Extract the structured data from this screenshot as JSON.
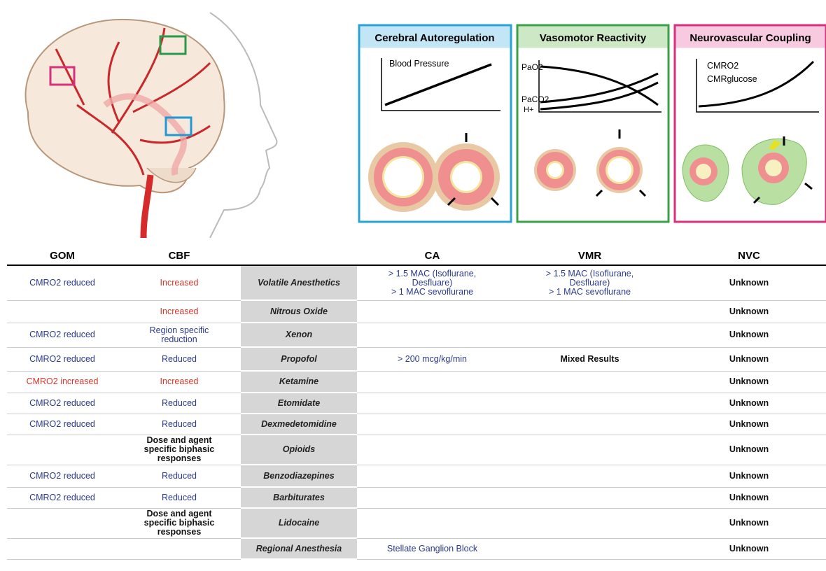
{
  "panels": [
    {
      "title": "Cerebral Autoregulation",
      "labels": [
        "Blood Pressure"
      ]
    },
    {
      "title": "Vasomotor Reactivity",
      "labels": [
        "PaO2",
        "PaCO2",
        "H+"
      ]
    },
    {
      "title": "Neurovascular Coupling",
      "labels": [
        "CMRO2",
        "CMRglucose"
      ]
    }
  ],
  "table": {
    "headers": [
      "GOM",
      "CBF",
      "CA",
      "VMR",
      "NVC"
    ],
    "rows": [
      {
        "agent": "Volatile Anesthetics",
        "gom": {
          "text": "CMRO2 reduced",
          "color": "#2b3a8c"
        },
        "cbf": {
          "text": "Increased",
          "color": "#d9372a"
        },
        "ca": {
          "text": [
            "> 1.5 MAC (Isoflurane, Desfluare)",
            "> 1 MAC sevoflurane"
          ],
          "color": "#2b3a8c"
        },
        "vmr": {
          "text": [
            "> 1.5 MAC (Isoflurane, Desfluare)",
            "> 1 MAC sevoflurane"
          ],
          "color": "#2b3a8c"
        },
        "nvc": {
          "text": "Unknown",
          "color": "#111"
        }
      },
      {
        "agent": "Nitrous Oxide",
        "cbf": {
          "text": "Increased",
          "color": "#d9372a"
        },
        "nvc": {
          "text": "Unknown",
          "color": "#111"
        }
      },
      {
        "agent": "Xenon",
        "gom": {
          "text": "CMRO2 reduced",
          "color": "#2b3a8c"
        },
        "cbf": {
          "text": "Region specific reduction",
          "color": "#2b3a8c"
        },
        "nvc": {
          "text": "Unknown",
          "color": "#111"
        }
      },
      {
        "agent": "Propofol",
        "gom": {
          "text": "CMRO2 reduced",
          "color": "#2b3a8c"
        },
        "cbf": {
          "text": "Reduced",
          "color": "#2b3a8c"
        },
        "ca": {
          "text": "> 200 mcg/kg/min",
          "color": "#2b3a8c"
        },
        "vmr": {
          "text": "Mixed Results",
          "color": "#111"
        },
        "nvc": {
          "text": "Unknown",
          "color": "#111"
        }
      },
      {
        "agent": "Ketamine",
        "gom": {
          "text": "CMRO2 increased",
          "color": "#d9372a"
        },
        "cbf": {
          "text": "Increased",
          "color": "#d9372a"
        },
        "nvc": {
          "text": "Unknown",
          "color": "#111"
        }
      },
      {
        "agent": "Etomidate",
        "gom": {
          "text": "CMRO2 reduced",
          "color": "#2b3a8c"
        },
        "cbf": {
          "text": "Reduced",
          "color": "#2b3a8c"
        },
        "nvc": {
          "text": "Unknown",
          "color": "#111"
        }
      },
      {
        "agent": "Dexmedetomidine",
        "gom": {
          "text": "CMRO2 reduced",
          "color": "#2b3a8c"
        },
        "cbf": {
          "text": "Reduced",
          "color": "#2b3a8c"
        },
        "nvc": {
          "text": "Unknown",
          "color": "#111"
        }
      },
      {
        "agent": "Opioids",
        "cbf": {
          "text": "Dose and agent specific biphasic responses",
          "color": "#111"
        },
        "nvc": {
          "text": "Unknown",
          "color": "#111"
        }
      },
      {
        "agent": "Benzodiazepines",
        "gom": {
          "text": "CMRO2 reduced",
          "color": "#2b3a8c"
        },
        "cbf": {
          "text": "Reduced",
          "color": "#2b3a8c"
        },
        "nvc": {
          "text": "Unknown",
          "color": "#111"
        }
      },
      {
        "agent": "Barbiturates",
        "gom": {
          "text": "CMRO2 reduced",
          "color": "#2b3a8c"
        },
        "cbf": {
          "text": "Reduced",
          "color": "#2b3a8c"
        },
        "nvc": {
          "text": "Unknown",
          "color": "#111"
        }
      },
      {
        "agent": "Lidocaine",
        "cbf": {
          "text": "Dose and agent specific biphasic responses",
          "color": "#111"
        },
        "nvc": {
          "text": "Unknown",
          "color": "#111"
        }
      },
      {
        "agent": "Regional Anesthesia",
        "ca": {
          "text": "Stellate Ganglion Block",
          "color": "#2b3a8c"
        },
        "nvc": {
          "text": "Unknown",
          "color": "#111"
        }
      }
    ]
  }
}
